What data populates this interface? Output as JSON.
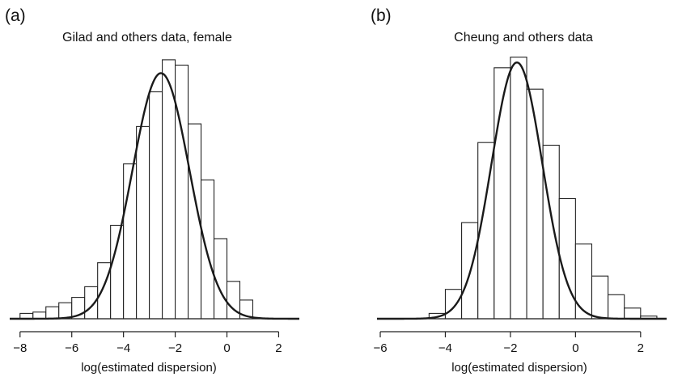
{
  "chart_data": [
    {
      "panel_label": "(a)",
      "type": "bar",
      "title": "Gilad and others data, female",
      "xlabel": "log(estimated dispersion)",
      "ylabel": "",
      "xlim": [
        -8.4,
        2.8
      ],
      "ylim": [
        0,
        1
      ],
      "xticks": [
        "−8",
        "−6",
        "−4",
        "−2",
        "0",
        "2"
      ],
      "xtick_values": [
        -8,
        -6,
        -4,
        -2,
        0,
        2
      ],
      "bin_edges": [
        -8,
        -7.5,
        -7,
        -6.5,
        -6,
        -5.5,
        -5,
        -4.5,
        -4,
        -3.5,
        -3,
        -2.5,
        -2,
        -1.5,
        -1,
        -0.5,
        0,
        0.5,
        1
      ],
      "values": [
        0.02,
        0.025,
        0.045,
        0.06,
        0.08,
        0.12,
        0.21,
        0.35,
        0.58,
        0.72,
        0.85,
        0.97,
        0.95,
        0.73,
        0.52,
        0.3,
        0.14,
        0.07
      ],
      "curve": {
        "mean": -2.55,
        "sd": 1.1,
        "peak": 0.92
      }
    },
    {
      "panel_label": "(b)",
      "type": "bar",
      "title": "Cheung and others data",
      "xlabel": "log(estimated dispersion)",
      "ylabel": "",
      "xlim": [
        -6.1,
        2.8
      ],
      "ylim": [
        0,
        1
      ],
      "xticks": [
        "−6",
        "−4",
        "−2",
        "0",
        "2"
      ],
      "xtick_values": [
        -6,
        -4,
        -2,
        0,
        2
      ],
      "bin_edges": [
        -4.5,
        -4,
        -3.5,
        -3,
        -2.5,
        -2,
        -1.5,
        -1,
        -0.5,
        0,
        0.5,
        1,
        1.5,
        2,
        2.5
      ],
      "values": [
        0.02,
        0.11,
        0.36,
        0.66,
        0.94,
        0.98,
        0.86,
        0.65,
        0.45,
        0.28,
        0.16,
        0.09,
        0.04,
        0.01
      ],
      "curve": {
        "mean": -1.8,
        "sd": 0.78,
        "peak": 0.96
      }
    }
  ]
}
